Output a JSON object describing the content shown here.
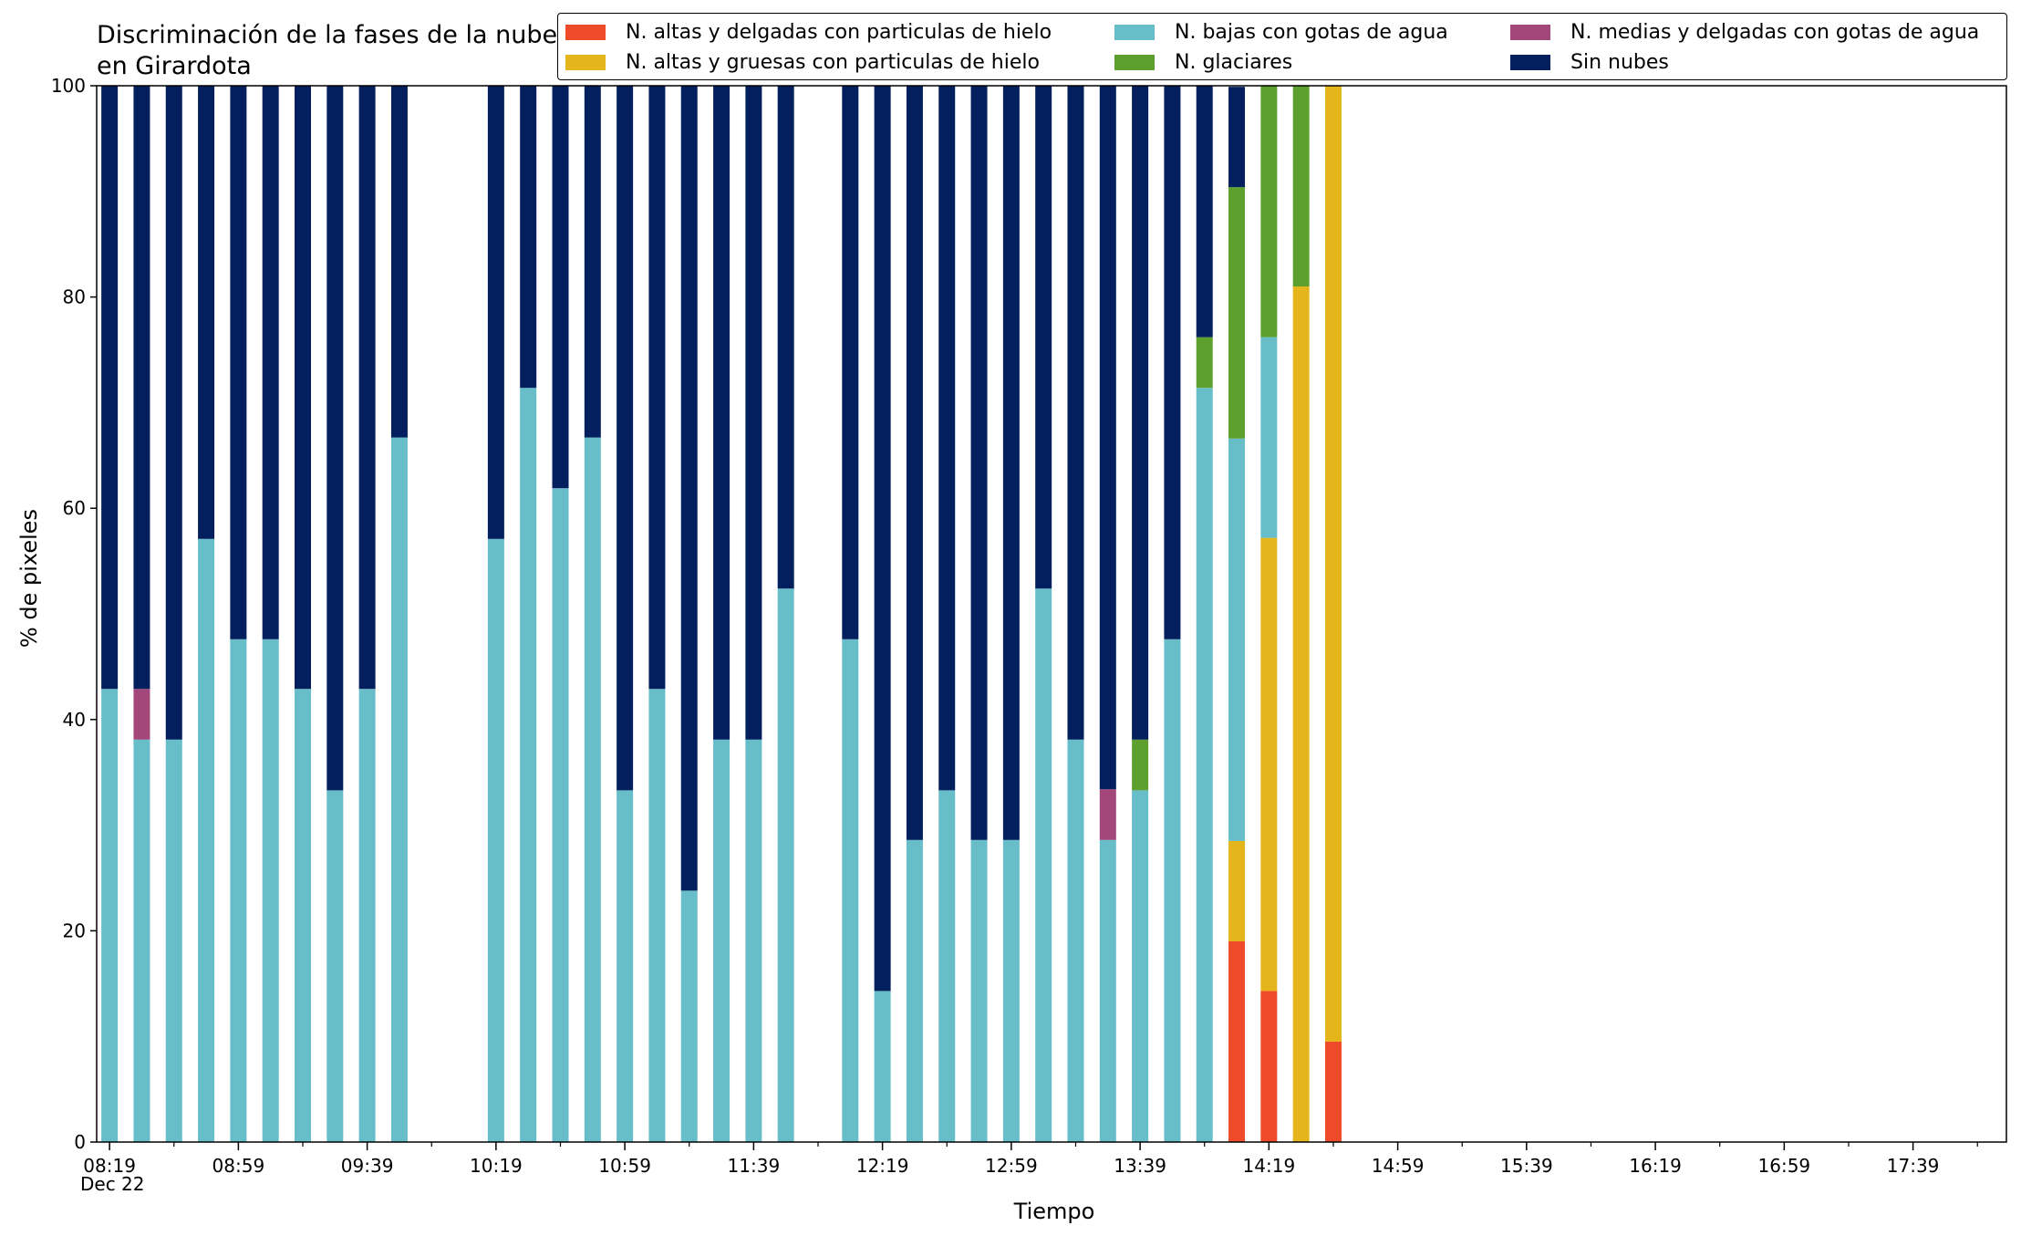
{
  "chart_data": {
    "type": "bar",
    "stacked": true,
    "title": "Discriminación de la fases de la nube en Girardota",
    "xlabel": "Tiempo",
    "ylabel": "% de pixeles",
    "ylim": [
      0,
      100
    ],
    "yticks": [
      0,
      20,
      40,
      60,
      80,
      100
    ],
    "xlim_minutes_from_0819": [
      -4,
      589
    ],
    "xtick_labels": [
      "08:19",
      "08:59",
      "09:39",
      "10:19",
      "10:59",
      "11:39",
      "12:19",
      "12:59",
      "13:39",
      "14:19",
      "14:59",
      "15:39",
      "16:19",
      "16:59",
      "17:39"
    ],
    "date_label": "Dec 22",
    "legend_position": "top-right",
    "grid": false,
    "x_times": [
      "08:19",
      "08:29",
      "08:39",
      "08:49",
      "08:59",
      "09:09",
      "09:19",
      "09:29",
      "09:39",
      "09:49",
      "10:19",
      "10:29",
      "10:39",
      "10:49",
      "10:59",
      "11:09",
      "11:19",
      "11:29",
      "11:39",
      "11:49",
      "12:09",
      "12:19",
      "12:29",
      "12:39",
      "12:49",
      "12:59",
      "13:09",
      "13:19",
      "13:29",
      "13:39",
      "13:49",
      "13:59",
      "14:09",
      "14:19",
      "14:29",
      "14:39"
    ],
    "series": [
      {
        "name": "N. altas y delgadas con particulas de hielo",
        "color": "#ed4b2a",
        "values": [
          0,
          0,
          0,
          0,
          0,
          0,
          0,
          0,
          0,
          0,
          0,
          0,
          0,
          0,
          0,
          0,
          0,
          0,
          0,
          0,
          0,
          0,
          0,
          0,
          0,
          0,
          0,
          0,
          0,
          0,
          0,
          0,
          19,
          14.3,
          0,
          9.5
        ]
      },
      {
        "name": "N. altas y gruesas con particulas de hielo",
        "color": "#e5b61c",
        "values": [
          0,
          0,
          0,
          0,
          0,
          0,
          0,
          0,
          0,
          0,
          0,
          0,
          0,
          0,
          0,
          0,
          0,
          0,
          0,
          0,
          0,
          0,
          0,
          0,
          0,
          0,
          0,
          0,
          0,
          0,
          0,
          0,
          9.5,
          42.9,
          81,
          90.5
        ]
      },
      {
        "name": "N. bajas con gotas de agua",
        "color": "#67bec9",
        "values": [
          42.9,
          38.1,
          38.1,
          57.1,
          47.6,
          47.6,
          42.9,
          33.3,
          42.9,
          66.7,
          57.1,
          71.4,
          61.9,
          66.7,
          33.3,
          42.9,
          23.8,
          38.1,
          38.1,
          52.4,
          47.6,
          14.3,
          28.6,
          33.3,
          28.6,
          28.6,
          52.4,
          38.1,
          28.6,
          33.3,
          47.6,
          71.4,
          38.1,
          19,
          0,
          0
        ]
      },
      {
        "name": "N. glaciares",
        "color": "#5ea02d",
        "values": [
          0,
          0,
          0,
          0,
          0,
          0,
          0,
          0,
          0,
          0,
          0,
          0,
          0,
          0,
          0,
          0,
          0,
          0,
          0,
          0,
          0,
          0,
          0,
          0,
          0,
          0,
          0,
          0,
          0,
          4.8,
          0,
          4.8,
          23.8,
          23.8,
          19,
          0
        ]
      },
      {
        "name": "N. medias y delgadas con gotas de agua",
        "color": "#a3477b",
        "values": [
          0,
          4.8,
          0,
          0,
          0,
          0,
          0,
          0,
          0,
          0,
          0,
          0,
          0,
          0,
          0,
          0,
          0,
          0,
          0,
          0,
          0,
          0,
          0,
          0,
          0,
          0,
          0,
          0,
          4.8,
          0,
          0,
          0,
          0,
          0,
          0,
          0
        ]
      },
      {
        "name": "Sin nubes",
        "color": "#031f5e",
        "values": [
          57.1,
          57.1,
          61.9,
          42.9,
          52.4,
          52.4,
          57.1,
          66.7,
          57.1,
          33.3,
          42.9,
          28.6,
          38.1,
          33.3,
          66.7,
          57.1,
          76.2,
          61.9,
          61.9,
          47.6,
          52.4,
          85.7,
          71.4,
          66.7,
          71.4,
          71.4,
          47.6,
          61.9,
          66.6,
          61.9,
          52.4,
          23.8,
          9.5,
          0,
          0,
          0
        ]
      }
    ]
  }
}
